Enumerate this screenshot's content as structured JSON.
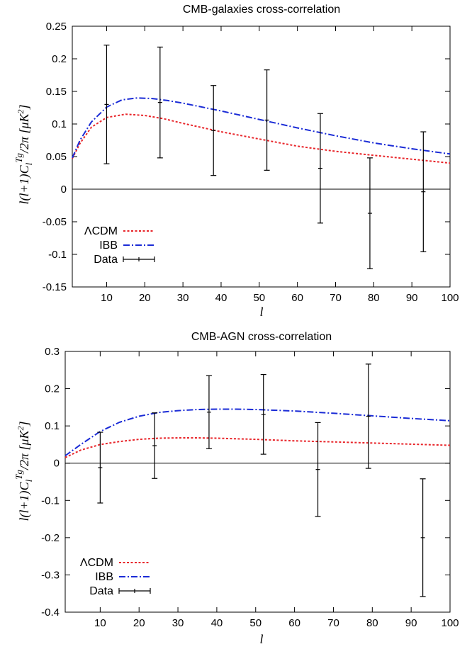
{
  "chart_data": [
    {
      "type": "line",
      "title": "CMB-galaxies cross-correlation",
      "xlabel": "l",
      "ylabel": "l(l+1)C_l^{Tg}/2π  [μK²]",
      "xlim": [
        1,
        100
      ],
      "ylim": [
        -0.15,
        0.25
      ],
      "xticks": [
        10,
        20,
        30,
        40,
        50,
        60,
        70,
        80,
        90,
        100
      ],
      "yticks": [
        -0.15,
        -0.1,
        -0.05,
        0,
        0.05,
        0.1,
        0.15,
        0.2,
        0.25
      ],
      "ytick_labels": [
        "-0.15",
        "-0.1",
        "-0.05",
        "0",
        "0.05",
        "0.1",
        "0.15",
        "0.2",
        "0.25"
      ],
      "zero_line": true,
      "legend_position": "bottom-left",
      "series": [
        {
          "name": "ΛCDM",
          "style": "dotted",
          "color": "#e8262b",
          "x": [
            1,
            3,
            6,
            10,
            15,
            20,
            25,
            30,
            40,
            50,
            60,
            70,
            80,
            90,
            100
          ],
          "y": [
            0.047,
            0.07,
            0.095,
            0.11,
            0.115,
            0.113,
            0.108,
            0.101,
            0.088,
            0.077,
            0.066,
            0.058,
            0.052,
            0.046,
            0.04
          ]
        },
        {
          "name": "IBB",
          "style": "dash-dot",
          "color": "#1a2bd6",
          "x": [
            1,
            3,
            6,
            10,
            14,
            18,
            22,
            26,
            30,
            40,
            50,
            60,
            70,
            80,
            90,
            100
          ],
          "y": [
            0.048,
            0.075,
            0.103,
            0.126,
            0.137,
            0.14,
            0.139,
            0.136,
            0.132,
            0.12,
            0.107,
            0.094,
            0.082,
            0.071,
            0.062,
            0.054
          ]
        },
        {
          "name": "Data",
          "style": "errorbar",
          "color": "#000000",
          "x": [
            10,
            24,
            38,
            52,
            66,
            79,
            93
          ],
          "y": [
            0.13,
            0.133,
            0.09,
            0.106,
            0.032,
            -0.037,
            -0.004
          ],
          "err": [
            0.091,
            0.085,
            0.069,
            0.077,
            0.084,
            0.085,
            0.092
          ]
        }
      ]
    },
    {
      "type": "line",
      "title": "CMB-AGN cross-correlation",
      "xlabel": "l",
      "ylabel": "l(l+1)C_l^{Tg}/2π  [μK²]",
      "xlim": [
        1,
        100
      ],
      "ylim": [
        -0.4,
        0.3
      ],
      "xticks": [
        10,
        20,
        30,
        40,
        50,
        60,
        70,
        80,
        90,
        100
      ],
      "yticks": [
        -0.4,
        -0.3,
        -0.2,
        -0.1,
        0,
        0.1,
        0.2,
        0.3
      ],
      "ytick_labels": [
        "-0.4",
        "-0.3",
        "-0.2",
        "-0.1",
        "0",
        "0.1",
        "0.2",
        "0.3"
      ],
      "zero_line": true,
      "legend_position": "bottom-left",
      "series": [
        {
          "name": "ΛCDM",
          "style": "dotted",
          "color": "#e8262b",
          "x": [
            1,
            5,
            10,
            15,
            20,
            25,
            30,
            35,
            40,
            50,
            60,
            70,
            80,
            90,
            100
          ],
          "y": [
            0.015,
            0.035,
            0.05,
            0.058,
            0.064,
            0.067,
            0.068,
            0.068,
            0.067,
            0.064,
            0.06,
            0.057,
            0.054,
            0.051,
            0.048
          ]
        },
        {
          "name": "IBB",
          "style": "dash-dot",
          "color": "#1a2bd6",
          "x": [
            1,
            5,
            10,
            15,
            20,
            25,
            30,
            35,
            40,
            45,
            50,
            60,
            70,
            80,
            90,
            100
          ],
          "y": [
            0.02,
            0.05,
            0.085,
            0.11,
            0.126,
            0.136,
            0.141,
            0.144,
            0.145,
            0.145,
            0.144,
            0.14,
            0.134,
            0.127,
            0.12,
            0.114
          ]
        },
        {
          "name": "Data",
          "style": "errorbar",
          "color": "#000000",
          "x": [
            10,
            24,
            38,
            52,
            66,
            79,
            93
          ],
          "y": [
            -0.012,
            0.047,
            0.137,
            0.131,
            -0.017,
            0.126,
            -0.2
          ],
          "err": [
            0.095,
            0.088,
            0.098,
            0.107,
            0.126,
            0.14,
            0.158
          ]
        }
      ]
    }
  ]
}
